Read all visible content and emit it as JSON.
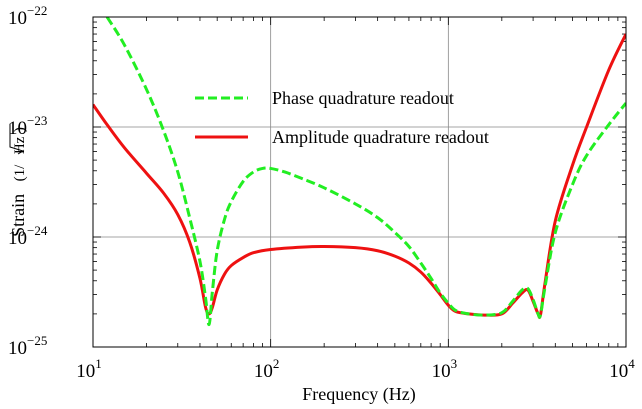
{
  "chart_data": {
    "type": "line",
    "title": "",
    "xlabel": "Frequency (Hz)",
    "ylabel": {
      "main": "Strain",
      "unit_prefix": "(1/",
      "unit_radicand": "Hz",
      "unit_suffix": ")"
    },
    "x_scale": "log",
    "y_scale": "log",
    "xlim": [
      10,
      10000
    ],
    "ylim": [
      1e-25,
      1e-22
    ],
    "grid": true,
    "legend_position": "upper-center",
    "x_ticks": [
      {
        "base": "10",
        "exp": "1",
        "value": 10
      },
      {
        "base": "10",
        "exp": "2",
        "value": 100
      },
      {
        "base": "10",
        "exp": "3",
        "value": 1000
      },
      {
        "base": "10",
        "exp": "4",
        "value": 10000
      }
    ],
    "y_ticks": [
      {
        "base": "10",
        "exp": "−22",
        "value": 1e-22
      },
      {
        "base": "10",
        "exp": "−23",
        "value": 1e-23
      },
      {
        "base": "10",
        "exp": "−24",
        "value": 1e-24
      },
      {
        "base": "10",
        "exp": "−25",
        "value": 1e-25
      }
    ],
    "series": [
      {
        "name": "Phase quadrature readout",
        "color": "#22ee22",
        "style": "dashed",
        "points": [
          [
            12,
            1e-22
          ],
          [
            15,
            5.6e-23
          ],
          [
            20,
            2.2e-23
          ],
          [
            25,
            9.2e-24
          ],
          [
            30,
            3.9e-24
          ],
          [
            35,
            1.5e-24
          ],
          [
            40,
            6e-25
          ],
          [
            43,
            2.8e-25
          ],
          [
            45,
            1.6e-25
          ],
          [
            47,
            3.2e-25
          ],
          [
            50,
            7.5e-25
          ],
          [
            55,
            1.45e-24
          ],
          [
            60,
            2.1e-24
          ],
          [
            70,
            3.2e-24
          ],
          [
            80,
            3.9e-24
          ],
          [
            90,
            4.2e-24
          ],
          [
            100,
            4.2e-24
          ],
          [
            120,
            3.9e-24
          ],
          [
            150,
            3.4e-24
          ],
          [
            200,
            2.8e-24
          ],
          [
            300,
            2e-24
          ],
          [
            400,
            1.5e-24
          ],
          [
            500,
            1.1e-24
          ],
          [
            600,
            8.2e-25
          ],
          [
            700,
            5.8e-25
          ],
          [
            800,
            4.2e-25
          ],
          [
            900,
            3.1e-25
          ],
          [
            1000,
            2.5e-25
          ],
          [
            1100,
            2.15e-25
          ],
          [
            1300,
            2e-25
          ],
          [
            1600,
            1.95e-25
          ],
          [
            2000,
            2.05e-25
          ],
          [
            2300,
            2.6e-25
          ],
          [
            2600,
            3.3e-25
          ],
          [
            2800,
            3.4e-25
          ],
          [
            3000,
            2.7e-25
          ],
          [
            3200,
            2e-25
          ],
          [
            3300,
            1.95e-25
          ],
          [
            3500,
            3.5e-25
          ],
          [
            4000,
            1.1e-24
          ],
          [
            5000,
            3e-24
          ],
          [
            6000,
            5.5e-24
          ],
          [
            8000,
            1.05e-23
          ],
          [
            10000,
            1.65e-23
          ]
        ]
      },
      {
        "name": "Amplitude quadrature readout",
        "color": "#ee1111",
        "style": "solid",
        "points": [
          [
            10,
            1.6e-23
          ],
          [
            12,
            1.05e-23
          ],
          [
            15,
            6.5e-24
          ],
          [
            20,
            3.8e-24
          ],
          [
            25,
            2.5e-24
          ],
          [
            30,
            1.6e-24
          ],
          [
            35,
            9e-25
          ],
          [
            40,
            4.2e-25
          ],
          [
            43,
            2.3e-25
          ],
          [
            45,
            2e-25
          ],
          [
            47,
            2.3e-25
          ],
          [
            50,
            3.3e-25
          ],
          [
            55,
            4.6e-25
          ],
          [
            60,
            5.5e-25
          ],
          [
            70,
            6.5e-25
          ],
          [
            80,
            7.2e-25
          ],
          [
            100,
            7.7e-25
          ],
          [
            150,
            8.1e-25
          ],
          [
            200,
            8.2e-25
          ],
          [
            300,
            8e-25
          ],
          [
            400,
            7.5e-25
          ],
          [
            500,
            6.7e-25
          ],
          [
            600,
            5.8e-25
          ],
          [
            700,
            4.8e-25
          ],
          [
            800,
            3.8e-25
          ],
          [
            900,
            3e-25
          ],
          [
            1000,
            2.4e-25
          ],
          [
            1100,
            2.1e-25
          ],
          [
            1300,
            2e-25
          ],
          [
            1600,
            1.95e-25
          ],
          [
            2000,
            2e-25
          ],
          [
            2300,
            2.5e-25
          ],
          [
            2600,
            3.1e-25
          ],
          [
            2800,
            3.3e-25
          ],
          [
            3000,
            2.6e-25
          ],
          [
            3200,
            2e-25
          ],
          [
            3300,
            1.95e-25
          ],
          [
            3500,
            3.8e-25
          ],
          [
            4000,
            1.4e-24
          ],
          [
            5000,
            4.5e-24
          ],
          [
            6000,
            1e-23
          ],
          [
            8000,
            3.3e-23
          ],
          [
            10000,
            7e-23
          ]
        ]
      }
    ]
  }
}
